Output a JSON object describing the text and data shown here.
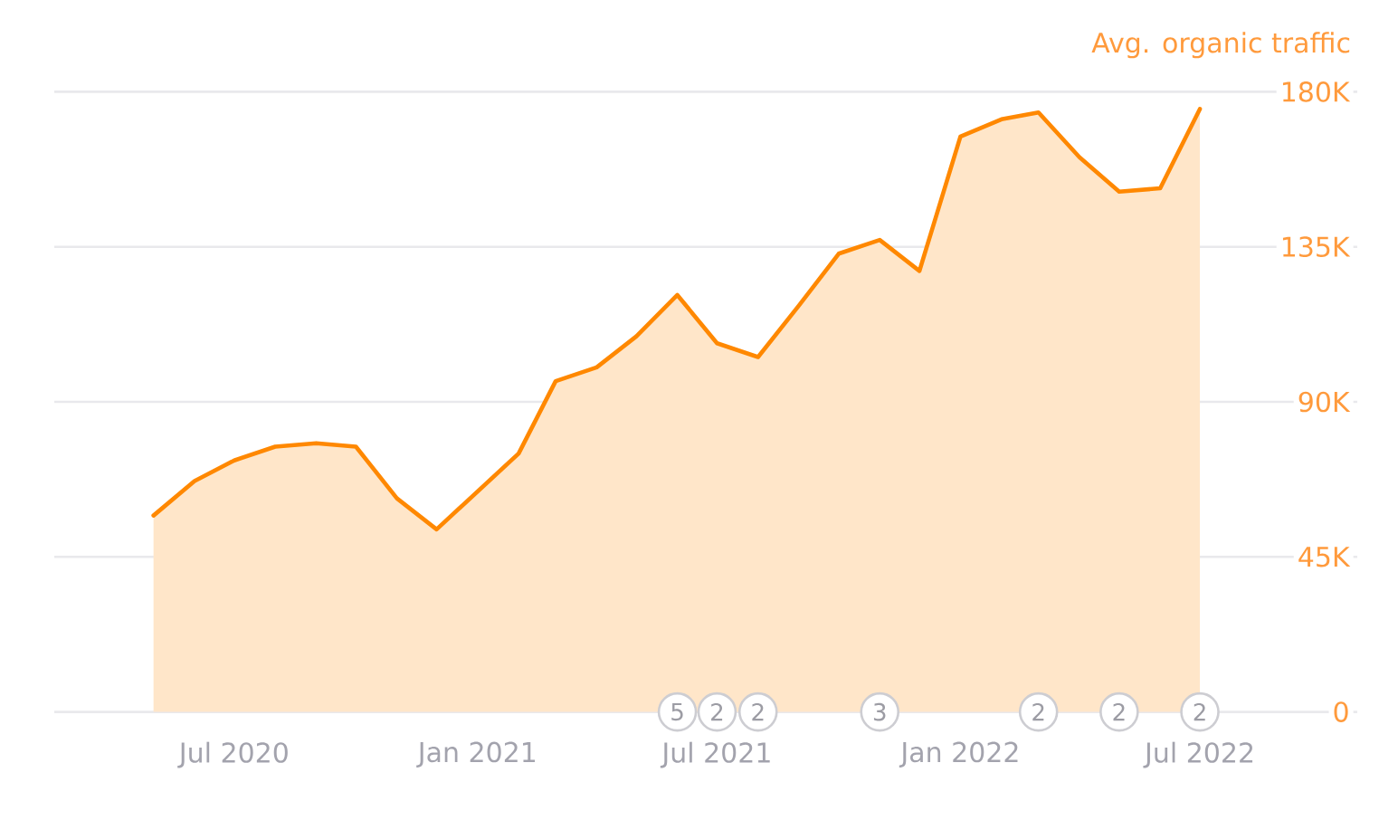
{
  "chart_data": {
    "type": "area",
    "ylabel": "Avg. organic traffic",
    "x": [
      "2020-05",
      "2020-06",
      "2020-07",
      "2020-08",
      "2020-09",
      "2020-10",
      "2020-11",
      "2020-12",
      "2021-01",
      "2021-02",
      "2021-03",
      "2021-04",
      "2021-05",
      "2021-06",
      "2021-07",
      "2021-08",
      "2021-09",
      "2021-10",
      "2021-11",
      "2021-12",
      "2022-01",
      "2022-02",
      "2022-03",
      "2022-04",
      "2022-05",
      "2022-06",
      "2022-07"
    ],
    "values": [
      57000,
      67000,
      73000,
      77000,
      78000,
      77000,
      62000,
      53000,
      64000,
      75000,
      96000,
      100000,
      109000,
      121000,
      107000,
      103000,
      118000,
      133000,
      137000,
      128000,
      167000,
      172000,
      174000,
      161000,
      151000,
      152000,
      175000
    ],
    "color": "#ff8800",
    "xlim": [
      "2020-02-16",
      "2022-10-28"
    ],
    "xticks": [
      {
        "value": "2020-07",
        "label": "Jul 2020"
      },
      {
        "value": "2021-01",
        "label": "Jan 2021"
      },
      {
        "value": "2021-07",
        "label": "Jul 2021"
      },
      {
        "value": "2022-01",
        "label": "Jan 2022"
      },
      {
        "value": "2022-07",
        "label": "Jul 2022"
      }
    ],
    "ylim": [
      0,
      180000
    ],
    "yticks": [
      0,
      {
        "value": 45000,
        "label": "45K"
      },
      {
        "value": 90000,
        "label": "90K"
      },
      {
        "value": 135000,
        "label": "135K"
      },
      {
        "value": 180000,
        "label": "180K"
      }
    ],
    "grid": "y",
    "annotations": [
      {
        "text": "5",
        "x": "2021-06"
      },
      {
        "text": "2",
        "x": "2021-07"
      },
      {
        "text": "2",
        "x": "2021-08"
      },
      {
        "text": "3",
        "x": "2021-11"
      },
      {
        "text": "2",
        "x": "2022-03"
      },
      {
        "text": "2",
        "x": "2022-05"
      },
      {
        "text": "2",
        "x": "2022-07"
      }
    ]
  }
}
